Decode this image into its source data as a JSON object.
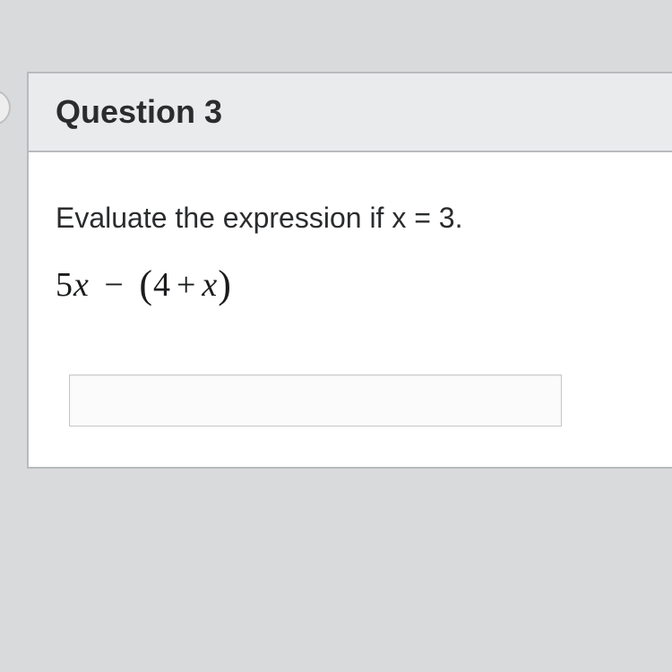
{
  "card": {
    "title": "Question 3",
    "instruction": "Evaluate the expression if x = 3.",
    "expression": {
      "coef": "5",
      "var1": "x",
      "minus": "−",
      "lparen": "(",
      "const": "4",
      "plus": "+",
      "var2": "x",
      "rparen": ")"
    },
    "answer_value": "",
    "answer_placeholder": ""
  },
  "styling": {
    "page_background": "#d8dadc",
    "card_background": "#ffffff",
    "card_border": "#b8bbbd",
    "header_background": "#e9ebec",
    "title_fontsize": 36,
    "title_color": "#2a2c2e",
    "instruction_fontsize": 32,
    "instruction_color": "#2a2c2e",
    "expression_fontsize": 38,
    "expression_color": "#1a1c1e",
    "expression_font": "Times New Roman",
    "input_width": 550,
    "input_height": 58,
    "input_border": "#c5c7c9",
    "input_background": "#fbfbfb"
  }
}
